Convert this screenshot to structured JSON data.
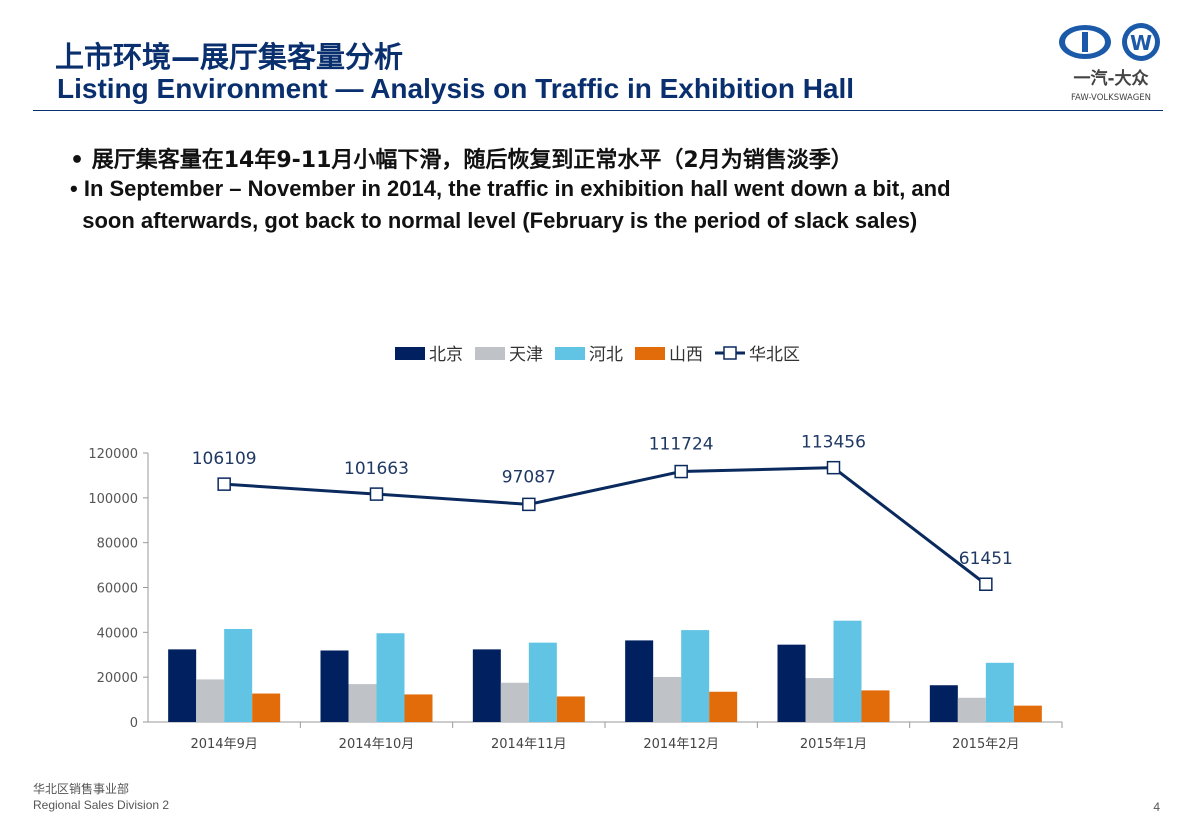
{
  "header": {
    "title_cn": "上市环境—展厅集客量分析",
    "title_en": "Listing Environment — Analysis on Traffic in Exhibition Hall",
    "logo_text": "一汽-大众",
    "logo_sub": "FAW-VOLKSWAGEN"
  },
  "bullets": [
    "展厅集客量在14年9-11月小幅下滑，随后恢复到正常水平（2月为销售淡季）",
    "In September – November in 2014, the traffic in exhibition hall went down a bit, and",
    "soon afterwards, got back to normal level (February is the period of slack sales)"
  ],
  "footer": {
    "dept_cn": "华北区销售事业部",
    "dept_en": "Regional Sales Division 2",
    "page": "4"
  },
  "chart_data": {
    "type": "bar+line",
    "categories": [
      "2014年9月",
      "2014年10月",
      "2014年11月",
      "2014年12月",
      "2015年1月",
      "2015年2月"
    ],
    "ylim": [
      0,
      120000
    ],
    "yticks": [
      0,
      20000,
      40000,
      60000,
      80000,
      100000,
      120000
    ],
    "legend_position": "top",
    "grid": false,
    "series": [
      {
        "name": "北京",
        "type": "bar",
        "color": "#002060",
        "values": [
          32400,
          31900,
          32400,
          36400,
          34500,
          16400
        ]
      },
      {
        "name": "天津",
        "type": "bar",
        "color": "#bfc3c8",
        "values": [
          19000,
          16900,
          17500,
          20100,
          19600,
          10800
        ]
      },
      {
        "name": "河北",
        "type": "bar",
        "color": "#62c4e4",
        "values": [
          41500,
          39600,
          35400,
          41000,
          45200,
          26400
        ]
      },
      {
        "name": "山西",
        "type": "bar",
        "color": "#e36c0a",
        "values": [
          12700,
          12300,
          11400,
          13500,
          14100,
          7300
        ]
      },
      {
        "name": "华北区",
        "type": "line",
        "color": "#0a2a5e",
        "values": [
          106109,
          101663,
          97087,
          111724,
          113456,
          61451
        ]
      }
    ]
  }
}
